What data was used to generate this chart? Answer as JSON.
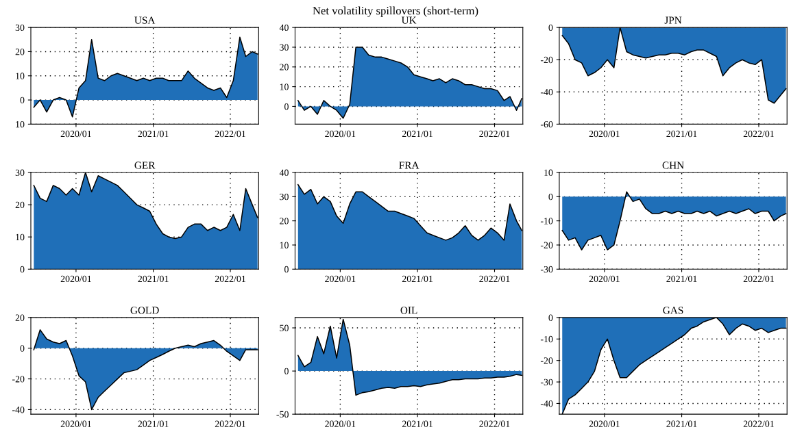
{
  "chart_data": [
    {
      "type": "area",
      "title": "USA",
      "annotations": [
        "Net volatility spillovers (short-term)"
      ],
      "xlim": [
        "2019-06-01",
        "2022-05-15"
      ],
      "xticks": [
        {
          "value": "2020-01-01",
          "label": "2020/01"
        },
        {
          "value": "2021-01-01",
          "label": "2021/01"
        },
        {
          "value": "2022-01-01",
          "label": "2022/01"
        }
      ],
      "ylim": [
        -10,
        30
      ],
      "yticks": [
        {
          "value": -10,
          "label": "10"
        },
        0,
        10,
        20,
        30
      ],
      "grid": true,
      "line_style": "solid",
      "x": [
        "2019-06-15",
        "2019-07-15",
        "2019-08-15",
        "2019-09-15",
        "2019-10-15",
        "2019-11-15",
        "2019-12-15",
        "2020-01-15",
        "2020-02-15",
        "2020-03-15",
        "2020-04-15",
        "2020-05-15",
        "2020-06-15",
        "2020-07-15",
        "2020-08-15",
        "2020-09-15",
        "2020-10-15",
        "2020-11-15",
        "2020-12-15",
        "2021-01-15",
        "2021-02-15",
        "2021-03-15",
        "2021-04-15",
        "2021-05-15",
        "2021-06-15",
        "2021-07-15",
        "2021-08-15",
        "2021-09-15",
        "2021-10-15",
        "2021-11-15",
        "2021-12-15",
        "2022-01-15",
        "2022-02-15",
        "2022-03-15",
        "2022-04-15",
        "2022-05-10"
      ],
      "series": [
        {
          "color": "#1f6fb8",
          "values": [
            -3,
            0,
            -5,
            0,
            1,
            0,
            -7,
            5,
            8,
            25,
            9,
            8,
            10,
            11,
            10,
            9,
            8,
            9,
            8,
            9,
            9,
            8,
            8,
            8,
            12,
            9,
            7,
            5,
            4,
            5,
            1,
            8,
            26,
            18,
            20,
            19
          ]
        }
      ]
    },
    {
      "type": "area",
      "title": "UK",
      "xlim": [
        "2019-06-01",
        "2022-05-15"
      ],
      "xticks": [
        {
          "value": "2020-01-01",
          "label": "2020/01"
        },
        {
          "value": "2021-01-01",
          "label": "2021/01"
        },
        {
          "value": "2022-01-01",
          "label": "2022/01"
        }
      ],
      "ylim": [
        -9,
        40
      ],
      "yticks": [
        0,
        10,
        20,
        30,
        40
      ],
      "grid": true,
      "line_style": "solid",
      "x": [
        "2019-06-15",
        "2019-07-15",
        "2019-08-15",
        "2019-09-15",
        "2019-10-15",
        "2019-11-15",
        "2019-12-15",
        "2020-01-15",
        "2020-02-15",
        "2020-03-15",
        "2020-04-15",
        "2020-05-15",
        "2020-06-15",
        "2020-07-15",
        "2020-08-15",
        "2020-09-15",
        "2020-10-15",
        "2020-11-15",
        "2020-12-15",
        "2021-01-15",
        "2021-02-15",
        "2021-03-15",
        "2021-04-15",
        "2021-05-15",
        "2021-06-15",
        "2021-07-15",
        "2021-08-15",
        "2021-09-15",
        "2021-10-15",
        "2021-11-15",
        "2021-12-15",
        "2022-01-15",
        "2022-02-15",
        "2022-03-15",
        "2022-04-15",
        "2022-05-10"
      ],
      "series": [
        {
          "color": "#1f6fb8",
          "values": [
            3,
            -2,
            0,
            -4,
            3,
            0,
            -2,
            -6,
            1,
            30,
            30,
            26,
            25,
            25,
            24,
            23,
            22,
            20,
            16,
            15,
            14,
            13,
            14,
            12,
            14,
            13,
            11,
            11,
            10,
            9,
            9,
            8,
            3,
            5,
            -2,
            4
          ]
        }
      ]
    },
    {
      "type": "area",
      "title": "JPN",
      "xlim": [
        "2019-06-01",
        "2022-05-15"
      ],
      "xticks": [
        {
          "value": "2020-01-01",
          "label": "2020/01"
        },
        {
          "value": "2021-01-01",
          "label": "2021/01"
        },
        {
          "value": "2022-01-01",
          "label": "2022/01"
        }
      ],
      "ylim": [
        -60,
        0
      ],
      "yticks": [
        -60,
        -40,
        -20,
        0
      ],
      "grid": true,
      "line_style": "solid",
      "x": [
        "2019-06-15",
        "2019-07-15",
        "2019-08-15",
        "2019-09-15",
        "2019-10-15",
        "2019-11-15",
        "2019-12-15",
        "2020-01-15",
        "2020-02-15",
        "2020-03-15",
        "2020-04-15",
        "2020-05-15",
        "2020-06-15",
        "2020-07-15",
        "2020-08-15",
        "2020-09-15",
        "2020-10-15",
        "2020-11-15",
        "2020-12-15",
        "2021-01-15",
        "2021-02-15",
        "2021-03-15",
        "2021-04-15",
        "2021-05-15",
        "2021-06-15",
        "2021-07-15",
        "2021-08-15",
        "2021-09-15",
        "2021-10-15",
        "2021-11-15",
        "2021-12-15",
        "2022-01-15",
        "2022-02-15",
        "2022-03-15",
        "2022-04-15",
        "2022-05-10"
      ],
      "series": [
        {
          "color": "#1f6fb8",
          "values": [
            -5,
            -10,
            -20,
            -22,
            -30,
            -28,
            -25,
            -20,
            -25,
            0,
            -15,
            -17,
            -18,
            -19,
            -18,
            -17,
            -17,
            -16,
            -16,
            -17,
            -15,
            -14,
            -14,
            -16,
            -18,
            -30,
            -25,
            -22,
            -20,
            -22,
            -23,
            -20,
            -45,
            -47,
            -42,
            -38
          ]
        }
      ]
    },
    {
      "type": "area",
      "title": "GER",
      "xlim": [
        "2019-06-01",
        "2022-05-15"
      ],
      "xticks": [
        {
          "value": "2020-01-01",
          "label": "2020/01"
        },
        {
          "value": "2021-01-01",
          "label": "2021/01"
        },
        {
          "value": "2022-01-01",
          "label": "2022/01"
        }
      ],
      "ylim": [
        0,
        30
      ],
      "yticks": [
        0,
        10,
        20,
        30
      ],
      "grid": true,
      "line_style": "solid",
      "x": [
        "2019-06-15",
        "2019-07-15",
        "2019-08-15",
        "2019-09-15",
        "2019-10-15",
        "2019-11-15",
        "2019-12-15",
        "2020-01-15",
        "2020-02-15",
        "2020-03-15",
        "2020-04-15",
        "2020-05-15",
        "2020-06-15",
        "2020-07-15",
        "2020-08-15",
        "2020-09-15",
        "2020-10-15",
        "2020-11-15",
        "2020-12-15",
        "2021-01-15",
        "2021-02-15",
        "2021-03-15",
        "2021-04-15",
        "2021-05-15",
        "2021-06-15",
        "2021-07-15",
        "2021-08-15",
        "2021-09-15",
        "2021-10-15",
        "2021-11-15",
        "2021-12-15",
        "2022-01-15",
        "2022-02-15",
        "2022-03-15",
        "2022-04-15",
        "2022-05-10"
      ],
      "series": [
        {
          "color": "#1f6fb8",
          "values": [
            26,
            22,
            21,
            26,
            25,
            23,
            25,
            23,
            30,
            24,
            29,
            28,
            27,
            26,
            24,
            22,
            20,
            19,
            18,
            14,
            11,
            10,
            9.5,
            10,
            13,
            14,
            14,
            12,
            13,
            12,
            13,
            17,
            12,
            25,
            20,
            16
          ]
        }
      ]
    },
    {
      "type": "area",
      "title": "FRA",
      "xlim": [
        "2019-06-01",
        "2022-05-15"
      ],
      "xticks": [
        {
          "value": "2020-01-01",
          "label": "2020/01"
        },
        {
          "value": "2021-01-01",
          "label": "2021/01"
        },
        {
          "value": "2022-01-01",
          "label": "2022/01"
        }
      ],
      "ylim": [
        0,
        40
      ],
      "yticks": [
        0,
        10,
        20,
        30,
        40
      ],
      "grid": true,
      "line_style": "solid",
      "x": [
        "2019-06-15",
        "2019-07-15",
        "2019-08-15",
        "2019-09-15",
        "2019-10-15",
        "2019-11-15",
        "2019-12-15",
        "2020-01-15",
        "2020-02-15",
        "2020-03-15",
        "2020-04-15",
        "2020-05-15",
        "2020-06-15",
        "2020-07-15",
        "2020-08-15",
        "2020-09-15",
        "2020-10-15",
        "2020-11-15",
        "2020-12-15",
        "2021-01-15",
        "2021-02-15",
        "2021-03-15",
        "2021-04-15",
        "2021-05-15",
        "2021-06-15",
        "2021-07-15",
        "2021-08-15",
        "2021-09-15",
        "2021-10-15",
        "2021-11-15",
        "2021-12-15",
        "2022-01-15",
        "2022-02-15",
        "2022-03-15",
        "2022-04-15",
        "2022-05-10"
      ],
      "series": [
        {
          "color": "#1f6fb8",
          "values": [
            35,
            31,
            33,
            27,
            30,
            28,
            22,
            19,
            27,
            32,
            32,
            30,
            28,
            26,
            24,
            24,
            23,
            22,
            21,
            18,
            15,
            14,
            13,
            12,
            13,
            15,
            18,
            14,
            12,
            14,
            17,
            15,
            12,
            27,
            20,
            16
          ]
        }
      ]
    },
    {
      "type": "area",
      "title": "CHN",
      "xlim": [
        "2019-06-01",
        "2022-05-15"
      ],
      "xticks": [
        {
          "value": "2020-01-01",
          "label": "2020/01"
        },
        {
          "value": "2021-01-01",
          "label": "2021/01"
        },
        {
          "value": "2022-01-01",
          "label": "2022/01"
        }
      ],
      "ylim": [
        -30,
        10
      ],
      "yticks": [
        -30,
        -20,
        -10,
        0,
        10
      ],
      "grid": true,
      "line_style": "solid",
      "x": [
        "2019-06-15",
        "2019-07-15",
        "2019-08-15",
        "2019-09-15",
        "2019-10-15",
        "2019-11-15",
        "2019-12-15",
        "2020-01-15",
        "2020-02-15",
        "2020-03-15",
        "2020-04-15",
        "2020-05-15",
        "2020-06-15",
        "2020-07-15",
        "2020-08-15",
        "2020-09-15",
        "2020-10-15",
        "2020-11-15",
        "2020-12-15",
        "2021-01-15",
        "2021-02-15",
        "2021-03-15",
        "2021-04-15",
        "2021-05-15",
        "2021-06-15",
        "2021-07-15",
        "2021-08-15",
        "2021-09-15",
        "2021-10-15",
        "2021-11-15",
        "2021-12-15",
        "2022-01-15",
        "2022-02-15",
        "2022-03-15",
        "2022-04-15",
        "2022-05-10"
      ],
      "series": [
        {
          "color": "#1f6fb8",
          "values": [
            -14,
            -18,
            -17,
            -22,
            -18,
            -17,
            -16,
            -22,
            -20,
            -10,
            2,
            -2,
            -1,
            -5,
            -7,
            -7,
            -6,
            -7,
            -6,
            -7,
            -7,
            -6,
            -7,
            -6,
            -8,
            -7,
            -6,
            -7,
            -6,
            -5,
            -7,
            -6,
            -6,
            -10,
            -8,
            -7
          ]
        }
      ]
    },
    {
      "type": "area",
      "title": "GOLD",
      "xlim": [
        "2019-06-01",
        "2022-05-15"
      ],
      "xticks": [
        {
          "value": "2020-01-01",
          "label": "2020/01"
        },
        {
          "value": "2021-01-01",
          "label": "2021/01"
        },
        {
          "value": "2022-01-01",
          "label": "2022/01"
        }
      ],
      "ylim": [
        -43,
        20
      ],
      "yticks": [
        -40,
        -20,
        0,
        20
      ],
      "grid": true,
      "line_style": "solid",
      "x": [
        "2019-06-15",
        "2019-07-15",
        "2019-08-15",
        "2019-09-15",
        "2019-10-15",
        "2019-11-15",
        "2019-12-15",
        "2020-01-15",
        "2020-02-15",
        "2020-03-15",
        "2020-04-15",
        "2020-05-15",
        "2020-06-15",
        "2020-07-15",
        "2020-08-15",
        "2020-09-15",
        "2020-10-15",
        "2020-11-15",
        "2020-12-15",
        "2021-01-15",
        "2021-02-15",
        "2021-03-15",
        "2021-04-15",
        "2021-05-15",
        "2021-06-15",
        "2021-07-15",
        "2021-08-15",
        "2021-09-15",
        "2021-10-15",
        "2021-11-15",
        "2021-12-15",
        "2022-01-15",
        "2022-02-15",
        "2022-03-15",
        "2022-04-15",
        "2022-05-10"
      ],
      "series": [
        {
          "color": "#1f6fb8",
          "values": [
            -1,
            12,
            6,
            4,
            3,
            5,
            -5,
            -18,
            -22,
            -40,
            -32,
            -28,
            -24,
            -20,
            -16,
            -15,
            -14,
            -11,
            -8,
            -6,
            -4,
            -2,
            0,
            1,
            2,
            1,
            3,
            4,
            5,
            2,
            -2,
            -5,
            -8,
            -1,
            -1,
            -1
          ]
        }
      ]
    },
    {
      "type": "area",
      "title": "OIL",
      "xlim": [
        "2019-06-01",
        "2022-05-15"
      ],
      "xticks": [
        {
          "value": "2020-01-01",
          "label": "2020/01"
        },
        {
          "value": "2021-01-01",
          "label": "2021/01"
        },
        {
          "value": "2022-01-01",
          "label": "2022/01"
        }
      ],
      "ylim": [
        -50,
        62
      ],
      "yticks": [
        -50,
        0,
        50
      ],
      "grid": true,
      "line_style": "solid",
      "x": [
        "2019-06-15",
        "2019-07-15",
        "2019-08-15",
        "2019-09-15",
        "2019-10-15",
        "2019-11-15",
        "2019-12-15",
        "2020-01-15",
        "2020-02-15",
        "2020-03-15",
        "2020-04-15",
        "2020-05-15",
        "2020-06-15",
        "2020-07-15",
        "2020-08-15",
        "2020-09-15",
        "2020-10-15",
        "2020-11-15",
        "2020-12-15",
        "2021-01-15",
        "2021-02-15",
        "2021-03-15",
        "2021-04-15",
        "2021-05-15",
        "2021-06-15",
        "2021-07-15",
        "2021-08-15",
        "2021-09-15",
        "2021-10-15",
        "2021-11-15",
        "2021-12-15",
        "2022-01-15",
        "2022-02-15",
        "2022-03-15",
        "2022-04-15",
        "2022-05-10"
      ],
      "series": [
        {
          "color": "#1f6fb8",
          "values": [
            18,
            5,
            10,
            40,
            20,
            52,
            15,
            60,
            30,
            -28,
            -25,
            -24,
            -22,
            -20,
            -19,
            -20,
            -18,
            -18,
            -17,
            -18,
            -16,
            -15,
            -14,
            -12,
            -10,
            -10,
            -9,
            -9,
            -9,
            -8,
            -8,
            -7,
            -7,
            -6,
            -4,
            -5
          ]
        }
      ]
    },
    {
      "type": "area",
      "title": "GAS",
      "xlim": [
        "2019-06-01",
        "2022-05-15"
      ],
      "xticks": [
        {
          "value": "2020-01-01",
          "label": "2020/01"
        },
        {
          "value": "2021-01-01",
          "label": "2021/01"
        },
        {
          "value": "2022-01-01",
          "label": "2022/01"
        }
      ],
      "ylim": [
        -45,
        0
      ],
      "yticks": [
        -40,
        -30,
        -20,
        -10,
        0
      ],
      "grid": true,
      "line_style": "solid",
      "x": [
        "2019-06-15",
        "2019-07-15",
        "2019-08-15",
        "2019-09-15",
        "2019-10-15",
        "2019-11-15",
        "2019-12-15",
        "2020-01-15",
        "2020-02-15",
        "2020-03-15",
        "2020-04-15",
        "2020-05-15",
        "2020-06-15",
        "2020-07-15",
        "2020-08-15",
        "2020-09-15",
        "2020-10-15",
        "2020-11-15",
        "2020-12-15",
        "2021-01-15",
        "2021-02-15",
        "2021-03-15",
        "2021-04-15",
        "2021-05-15",
        "2021-06-15",
        "2021-07-15",
        "2021-08-15",
        "2021-09-15",
        "2021-10-15",
        "2021-11-15",
        "2021-12-15",
        "2022-01-15",
        "2022-02-15",
        "2022-03-15",
        "2022-04-15",
        "2022-05-10"
      ],
      "series": [
        {
          "color": "#1f6fb8",
          "values": [
            -45,
            -38,
            -36,
            -33,
            -30,
            -25,
            -15,
            -10,
            -20,
            -28,
            -28,
            -25,
            -22,
            -20,
            -18,
            -16,
            -14,
            -12,
            -10,
            -8,
            -5,
            -4,
            -2,
            -1,
            0,
            -3,
            -8,
            -5,
            -3,
            -4,
            -6,
            -5,
            -7,
            -6,
            -5,
            -5
          ]
        }
      ]
    }
  ]
}
